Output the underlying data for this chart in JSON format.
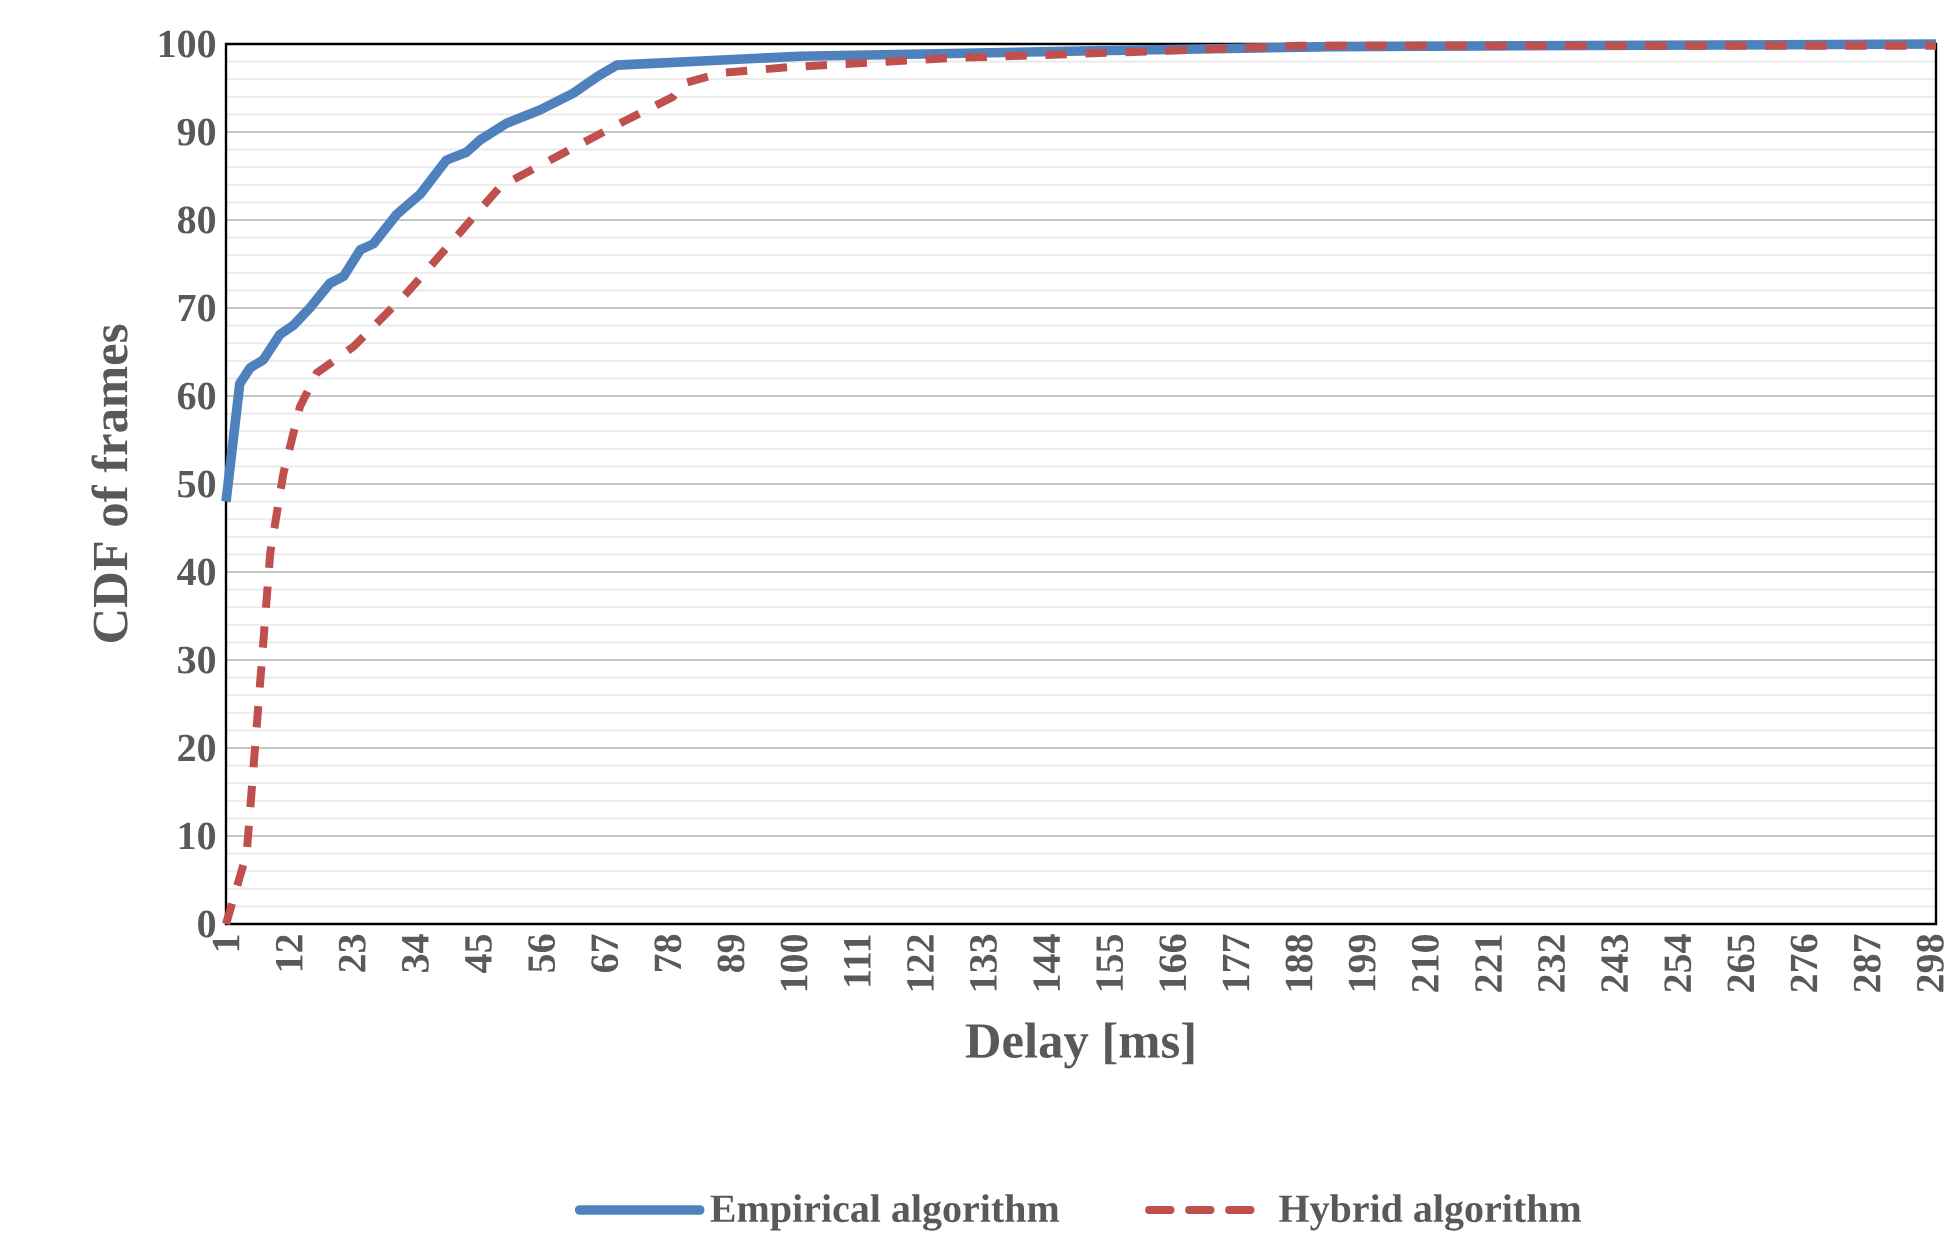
{
  "chart_data": {
    "type": "line",
    "xlabel": "Delay [ms]",
    "ylabel": "CDF of frames",
    "xlim": [
      1,
      299
    ],
    "ylim": [
      0,
      100
    ],
    "xticks": [
      1,
      12,
      23,
      34,
      45,
      56,
      67,
      78,
      89,
      100,
      111,
      122,
      133,
      144,
      155,
      166,
      177,
      188,
      199,
      210,
      221,
      232,
      243,
      254,
      265,
      276,
      287,
      298
    ],
    "yticks": [
      0,
      10,
      20,
      30,
      40,
      50,
      60,
      70,
      80,
      90,
      100
    ],
    "grid": "y",
    "legend": "bottom",
    "series": [
      {
        "name": "Empirical algorithm",
        "color": "#4f81bd",
        "line_style": "solid",
        "x": [
          1,
          3.4,
          5.2,
          7.5,
          10.4,
          12.7,
          15.6,
          19.1,
          21.5,
          24.4,
          26.7,
          30.7,
          34.8,
          39.4,
          42.9,
          45.3,
          49.9,
          55.7,
          61.5,
          66.2,
          69.1,
          101,
          150,
          194,
          299
        ],
        "values": [
          48,
          61.4,
          63.2,
          64.1,
          67,
          68,
          70,
          72.8,
          73.6,
          76.6,
          77.3,
          80.6,
          82.9,
          86.8,
          87.7,
          89.1,
          91,
          92.5,
          94.4,
          96.5,
          97.6,
          98.6,
          99.2,
          99.7,
          100
        ]
      },
      {
        "name": "Hybrid algorithm",
        "color": "#c0504d",
        "line_style": "dashed",
        "x": [
          1,
          4.6,
          6.9,
          8.7,
          11,
          13.9,
          16.8,
          23.2,
          32.5,
          40.6,
          48.8,
          59.8,
          69.7,
          78.9,
          80.7,
          87.1,
          99.7,
          127.5,
          163.8,
          187.8,
          299
        ],
        "values": [
          0,
          8,
          27,
          42.1,
          51.2,
          58.8,
          62.6,
          65.6,
          71.7,
          77.7,
          83.8,
          87.6,
          91,
          94,
          95.5,
          96.7,
          97.4,
          98.4,
          99.2,
          99.8,
          99.8
        ]
      }
    ]
  }
}
